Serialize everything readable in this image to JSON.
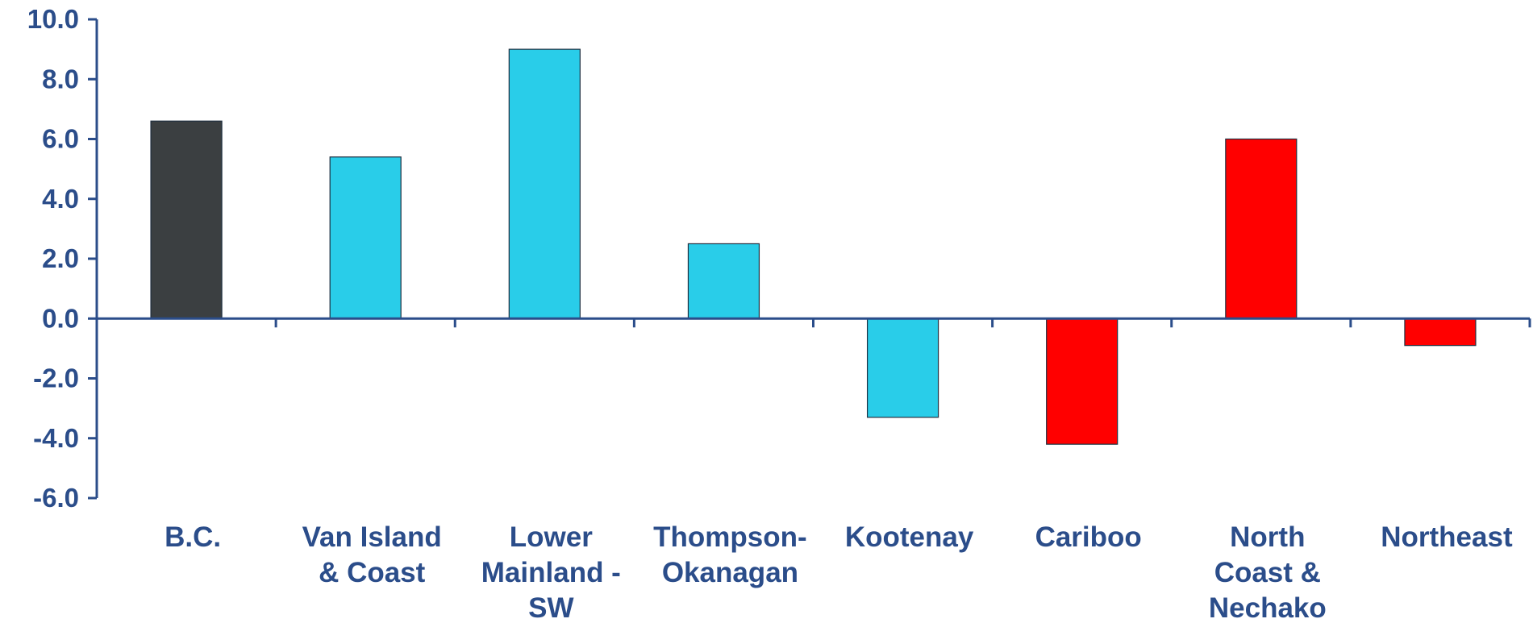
{
  "chart_data": {
    "type": "bar",
    "categories": [
      [
        "B.C."
      ],
      [
        "Van Island",
        "& Coast"
      ],
      [
        "Lower",
        "Mainland -",
        "SW"
      ],
      [
        "Thompson-",
        "Okanagan"
      ],
      [
        "Kootenay"
      ],
      [
        "Cariboo"
      ],
      [
        "North",
        "Coast &",
        "Nechako"
      ],
      [
        "Northeast"
      ]
    ],
    "values": [
      6.6,
      5.4,
      9.0,
      2.5,
      -3.3,
      -4.2,
      6.0,
      -0.9
    ],
    "bar_colors": [
      "#3b3f41",
      "#29cde9",
      "#29cde9",
      "#29cde9",
      "#29cde9",
      "#ff0000",
      "#ff0000",
      "#ff0000"
    ],
    "ylim": [
      -6.0,
      10.0
    ],
    "yticks": [
      "10.0",
      "8.0",
      "6.0",
      "4.0",
      "2.0",
      "0.0",
      "-2.0",
      "-4.0",
      "-6.0"
    ],
    "ytick_values": [
      10,
      8,
      6,
      4,
      2,
      0,
      -2,
      -4,
      -6
    ],
    "title": "",
    "xlabel": "",
    "ylabel": "",
    "grid": false,
    "legend": "none",
    "axis_color": "#2b4d8a"
  }
}
